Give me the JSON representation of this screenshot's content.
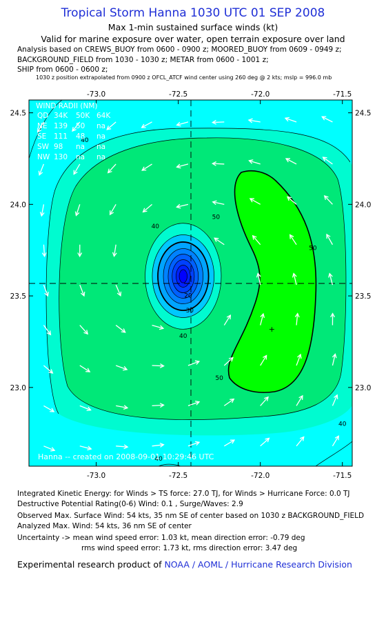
{
  "header": {
    "title": "Tropical Storm Hanna 1030 UTC 01 SEP 2008",
    "subtitle1": "Max 1-min sustained surface winds (kt)",
    "subtitle2": "Valid for marine exposure over water, open terrain exposure over land"
  },
  "analysis": {
    "line1": "Analysis based on  CREWS_BUOY from 0600 - 0900 z;  MOORED_BUOY from 0609 - 0949 z;",
    "line2": "BACKGROUND_FIELD from 1030 - 1030 z;  METAR from 0600 - 1001 z;",
    "line3": "SHIP from 0600 - 0600 z;",
    "line4": "1030 z position extrapolated from 0900 z OFCL_ATCF wind center using 260 deg @ 2 kts; mslp = 996.0 mb"
  },
  "chart_data": {
    "type": "contour",
    "x_ticks": [
      -73.0,
      -72.5,
      -72.0,
      -71.5
    ],
    "x_tick_labels": [
      "-73.0",
      "-72.5",
      "-72.0",
      "-71.5"
    ],
    "y_ticks": [
      24.5,
      24.0,
      23.5,
      23.0
    ],
    "y_tick_labels": [
      "24.5",
      "24.0",
      "23.5",
      "23.0"
    ],
    "xlim": [
      -73.41,
      -71.44
    ],
    "ylim": [
      22.57,
      24.57
    ],
    "storm_center": {
      "lon": -72.47,
      "lat": 23.6
    },
    "max_wind_marker": {
      "lon": -71.93,
      "lat": 23.32
    },
    "contour_levels": [
      10,
      20,
      30,
      34,
      40,
      50
    ],
    "contour_labels": [
      {
        "text": "40",
        "lon": -72.64,
        "lat": 23.87
      },
      {
        "text": "20",
        "lon": -72.44,
        "lat": 23.49
      },
      {
        "text": "30",
        "lon": -72.43,
        "lat": 23.41
      },
      {
        "text": "40",
        "lon": -72.47,
        "lat": 23.27
      },
      {
        "text": "50",
        "lon": -72.27,
        "lat": 23.92
      },
      {
        "text": "50",
        "lon": -71.68,
        "lat": 23.75
      },
      {
        "text": "50",
        "lon": -72.25,
        "lat": 23.04
      },
      {
        "text": "40",
        "lon": -71.5,
        "lat": 22.79
      },
      {
        "text": "40",
        "lon": -73.07,
        "lat": 24.34
      },
      {
        "text": "40",
        "lon": -72.62,
        "lat": 22.6
      }
    ],
    "wind_radii": {
      "title": "WIND RADII (NM)",
      "header": [
        "QD",
        "34K",
        "50K",
        "64K"
      ],
      "rows": [
        [
          "NE",
          "139",
          "50",
          "na"
        ],
        [
          "SE",
          "111",
          "48",
          "na"
        ],
        [
          "SW",
          "98",
          "na",
          "na"
        ],
        [
          "NW",
          "130",
          "na",
          "na"
        ]
      ]
    },
    "credit": "Hanna -- created on 2008-09-01 10:29:46 UTC",
    "colors": {
      "outer": "#00ffff",
      "band34": "#00fbd0",
      "band40": "#00e878",
      "band50": "#00ff00",
      "inner": [
        "#00c8ff",
        "#00a4ff",
        "#0082ff",
        "#0060ff",
        "#0040ff",
        "#0020ff",
        "#0000ff"
      ]
    }
  },
  "bottom": {
    "ike": "Integrated Kinetic Energy:  for Winds > TS force: 27.0 TJ,  for Winds > Hurricane Force: 0.0 TJ",
    "dpr": "Destructive Potential Rating(0-6)   Wind: 0.1 , Surge/Waves: 2.9",
    "obs_max": "Observed Max. Surface Wind: 54 kts, 35 nm SE of center based on 1030 z BACKGROUND_FIELD",
    "ana_max": "Analyzed Max. Wind: 54 kts, 36 nm SE of center",
    "unc1": "Uncertainty -> mean wind speed error: 1.03 kt,   mean direction error:  -0.79 deg",
    "unc2": "rms wind speed error: 1.73 kt,   rms direction error: 3.47 deg",
    "footer_text": "Experimental research product of ",
    "footer_link": "NOAA / AOML / Hurricane Research Division"
  }
}
